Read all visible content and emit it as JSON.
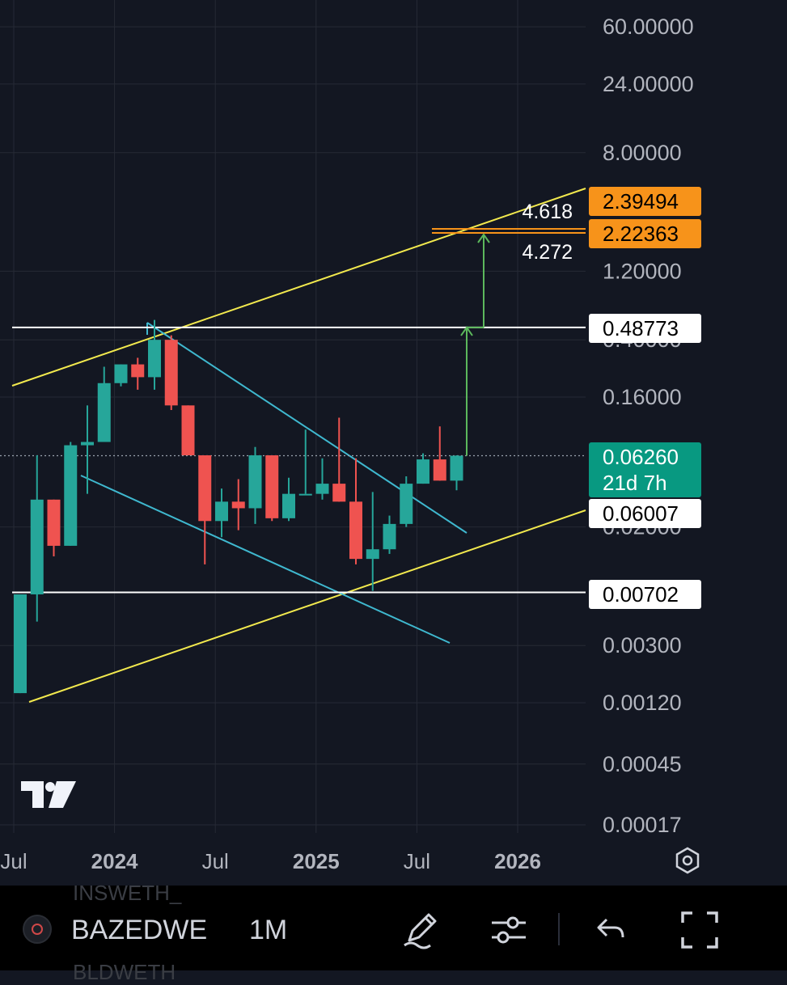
{
  "chart_data": {
    "type": "candlestick",
    "scale": "log",
    "interval": "1M",
    "y_ticks": [
      "60.00000",
      "24.00000",
      "8.00000",
      "1.20000",
      "0.40000",
      "0.16000",
      "0.02000",
      "0.00300",
      "0.00120",
      "0.00045",
      "0.00017"
    ],
    "x_ticks": [
      {
        "label": "Jul",
        "bold": false
      },
      {
        "label": "2024",
        "bold": true
      },
      {
        "label": "Jul",
        "bold": false
      },
      {
        "label": "2025",
        "bold": true
      },
      {
        "label": "Jul",
        "bold": false
      },
      {
        "label": "2026",
        "bold": true
      }
    ],
    "candles": [
      {
        "o": 0.0014,
        "h": 0.0068,
        "l": 0.0014,
        "c": 0.0068
      },
      {
        "o": 0.0068,
        "h": 0.063,
        "l": 0.0044,
        "c": 0.031
      },
      {
        "o": 0.031,
        "h": 0.031,
        "l": 0.0125,
        "c": 0.0148
      },
      {
        "o": 0.0148,
        "h": 0.078,
        "l": 0.0148,
        "c": 0.074
      },
      {
        "o": 0.074,
        "h": 0.14,
        "l": 0.034,
        "c": 0.078
      },
      {
        "o": 0.078,
        "h": 0.26,
        "l": 0.078,
        "c": 0.2
      },
      {
        "o": 0.2,
        "h": 0.27,
        "l": 0.19,
        "c": 0.27
      },
      {
        "o": 0.27,
        "h": 0.3,
        "l": 0.18,
        "c": 0.22
      },
      {
        "o": 0.22,
        "h": 0.55,
        "l": 0.18,
        "c": 0.4
      },
      {
        "o": 0.4,
        "h": 0.43,
        "l": 0.13,
        "c": 0.14
      },
      {
        "o": 0.14,
        "h": 0.14,
        "l": 0.063,
        "c": 0.063
      },
      {
        "o": 0.063,
        "h": 0.063,
        "l": 0.011,
        "c": 0.022
      },
      {
        "o": 0.022,
        "h": 0.037,
        "l": 0.017,
        "c": 0.03
      },
      {
        "o": 0.03,
        "h": 0.043,
        "l": 0.019,
        "c": 0.027
      },
      {
        "o": 0.027,
        "h": 0.072,
        "l": 0.021,
        "c": 0.063
      },
      {
        "o": 0.063,
        "h": 0.063,
        "l": 0.022,
        "c": 0.023
      },
      {
        "o": 0.023,
        "h": 0.044,
        "l": 0.022,
        "c": 0.034
      },
      {
        "o": 0.034,
        "h": 0.095,
        "l": 0.034,
        "c": 0.034
      },
      {
        "o": 0.034,
        "h": 0.06,
        "l": 0.031,
        "c": 0.04
      },
      {
        "o": 0.04,
        "h": 0.115,
        "l": 0.03,
        "c": 0.03
      },
      {
        "o": 0.03,
        "h": 0.06,
        "l": 0.011,
        "c": 0.012
      },
      {
        "o": 0.012,
        "h": 0.035,
        "l": 0.0072,
        "c": 0.014
      },
      {
        "o": 0.014,
        "h": 0.024,
        "l": 0.013,
        "c": 0.021
      },
      {
        "o": 0.021,
        "h": 0.045,
        "l": 0.02,
        "c": 0.04
      },
      {
        "o": 0.04,
        "h": 0.065,
        "l": 0.04,
        "c": 0.059
      },
      {
        "o": 0.059,
        "h": 0.1,
        "l": 0.042,
        "c": 0.042
      },
      {
        "o": 0.042,
        "h": 0.063,
        "l": 0.036,
        "c": 0.0626
      }
    ],
    "horizontal_levels": [
      {
        "value": 0.48773,
        "label": "0.48773"
      },
      {
        "value": 0.00702,
        "label": "0.00702"
      }
    ],
    "current_price": {
      "value": 0.0626,
      "label": "0.06260",
      "countdown": "21d 7h"
    },
    "channel_lower_label": "0.06007",
    "fib_levels": [
      {
        "ratio": "4.618",
        "value": 2.39494,
        "label": "2.39494"
      },
      {
        "ratio": "4.272",
        "value": 2.22363,
        "label": "2.22363"
      }
    ],
    "colors": {
      "background": "#131722",
      "grid": "#262a35",
      "up": "#26a69a",
      "down": "#ef5350",
      "channel": "#f2e94e",
      "wedge": "#3fb8cf",
      "arrow": "#5cb85c",
      "fib": "#f7931a",
      "level": "#ffffff"
    }
  },
  "toolbar": {
    "ghost_top": "INSWETH_",
    "symbol": "BAZEDWE",
    "interval": "1M",
    "ghost_bottom": "BLDWETH"
  },
  "icons": {
    "logo": "tradingview-logo",
    "settings": "settings-icon",
    "draw": "pen-icon",
    "indicators": "sliders-icon",
    "undo": "undo-icon",
    "fullscreen": "fullscreen-icon"
  }
}
